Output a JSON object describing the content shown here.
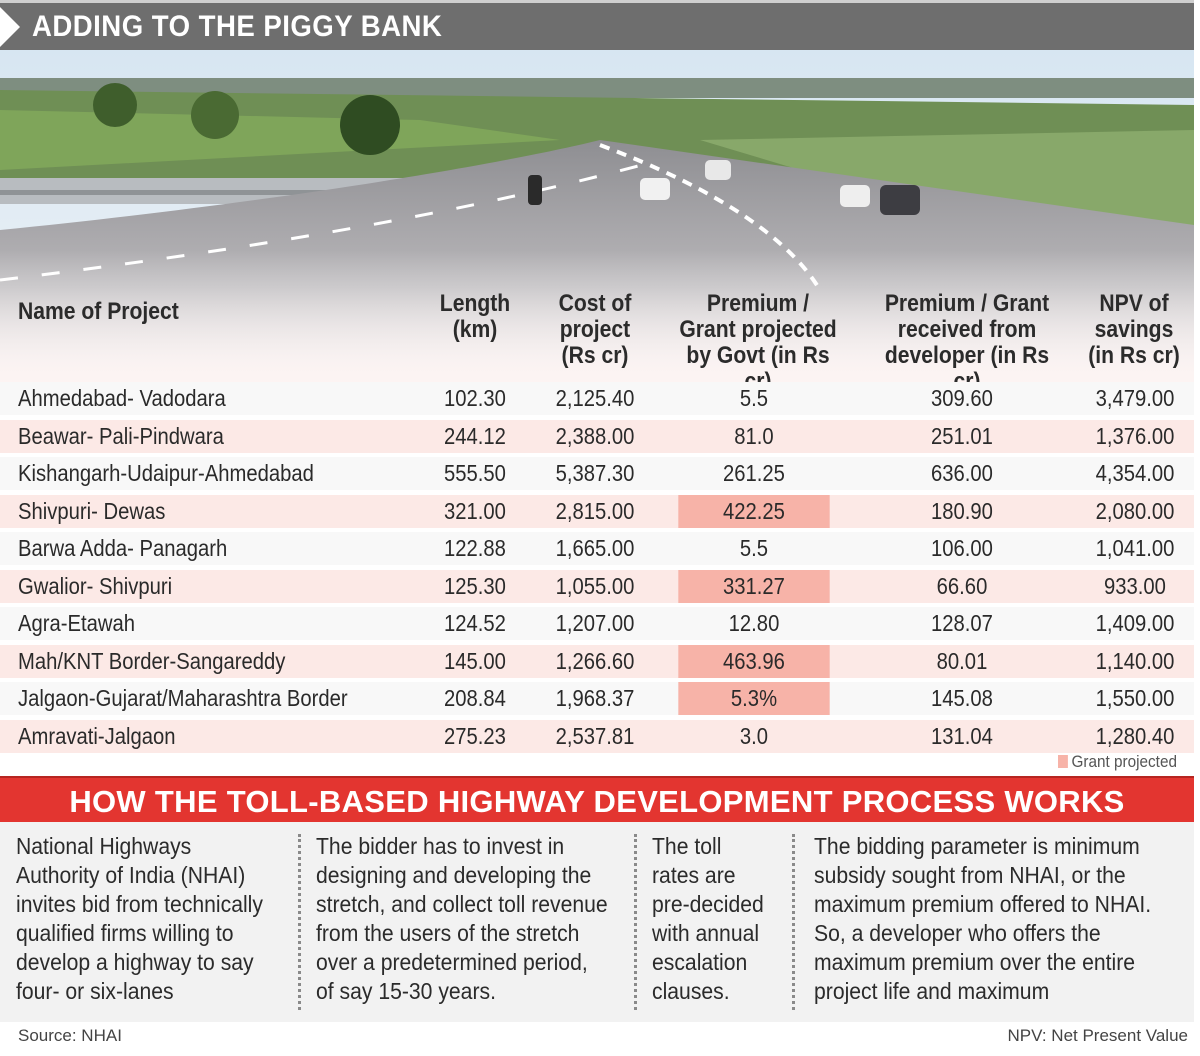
{
  "title": "ADDING TO THE PIGGY BANK",
  "table": {
    "headers": {
      "name": "Name of Project",
      "length": [
        "Length",
        "(km)"
      ],
      "cost": [
        "Cost of",
        "project",
        "(Rs cr)"
      ],
      "premium_govt": [
        "Premium /",
        "Grant projected",
        "by Govt (in Rs cr)"
      ],
      "premium_dev": [
        "Premium / Grant",
        "received from",
        "developer (in Rs cr)"
      ],
      "npv": [
        "NPV of",
        "savings",
        "(in Rs cr)"
      ]
    },
    "rows": [
      {
        "name": "Ahmedabad- Vadodara",
        "length": "102.30",
        "cost": "2,125.40",
        "premium_govt": "5.5",
        "premium_dev": "309.60",
        "npv": "3,479.00",
        "grant": false
      },
      {
        "name": "Beawar- Pali-Pindwara",
        "length": "244.12",
        "cost": "2,388.00",
        "premium_govt": "81.0",
        "premium_dev": "251.01",
        "npv": "1,376.00",
        "grant": false
      },
      {
        "name": "Kishangarh-Udaipur-Ahmedabad",
        "length": "555.50",
        "cost": "5,387.30",
        "premium_govt": "261.25",
        "premium_dev": "636.00",
        "npv": "4,354.00",
        "grant": false
      },
      {
        "name": "Shivpuri- Dewas",
        "length": "321.00",
        "cost": "2,815.00",
        "premium_govt": "422.25",
        "premium_dev": "180.90",
        "npv": "2,080.00",
        "grant": true
      },
      {
        "name": "Barwa Adda- Panagarh",
        "length": "122.88",
        "cost": "1,665.00",
        "premium_govt": "5.5",
        "premium_dev": "106.00",
        "npv": "1,041.00",
        "grant": false
      },
      {
        "name": "Gwalior- Shivpuri",
        "length": "125.30",
        "cost": "1,055.00",
        "premium_govt": "331.27",
        "premium_dev": "66.60",
        "npv": "933.00",
        "grant": true
      },
      {
        "name": "Agra-Etawah",
        "length": "124.52",
        "cost": "1,207.00",
        "premium_govt": "12.80",
        "premium_dev": "128.07",
        "npv": "1,409.00",
        "grant": false
      },
      {
        "name": "Mah/KNT Border-Sangareddy",
        "length": "145.00",
        "cost": "1,266.60",
        "premium_govt": "463.96",
        "premium_dev": "80.01",
        "npv": "1,140.00",
        "grant": true
      },
      {
        "name": "Jalgaon-Gujarat/Maharashtra Border",
        "length": "208.84",
        "cost": "1,968.37",
        "premium_govt": "5.3%",
        "premium_dev": "145.08",
        "npv": "1,550.00",
        "grant": true
      },
      {
        "name": "Amravati-Jalgaon",
        "length": "275.23",
        "cost": "2,537.81",
        "premium_govt": "3.0",
        "premium_dev": "131.04",
        "npv": "1,280.40",
        "grant": false
      }
    ],
    "legend": "Grant projected",
    "highlight_color": "#f7b3a8"
  },
  "process": {
    "heading": "HOW THE TOLL-BASED HIGHWAY DEVELOPMENT PROCESS WORKS",
    "columns": [
      [
        "National Highways",
        "Authority of India (NHAI)",
        "invites bid from technically",
        "qualified firms willing to",
        "develop a highway to say",
        "four- or six-lanes"
      ],
      [
        "The bidder has to invest in",
        "designing and developing the",
        "stretch, and collect toll revenue",
        "from the users of the stretch",
        "over a predetermined period,",
        "of say 15-30 years."
      ],
      [
        "The toll",
        "rates are",
        "pre-decided",
        "with annual",
        "escalation",
        "clauses."
      ],
      [
        "The bidding parameter is minimum",
        "subsidy sought from NHAI, or the",
        "maximum premium offered to NHAI.",
        "So, a developer who offers the",
        "maximum premium over the entire",
        "project life and maximum"
      ]
    ]
  },
  "footer": {
    "source": "Source: NHAI",
    "note": "NPV: Net Present Value"
  },
  "colors": {
    "title_bar": "#6e6e6e",
    "red_bar": "#e33530"
  }
}
